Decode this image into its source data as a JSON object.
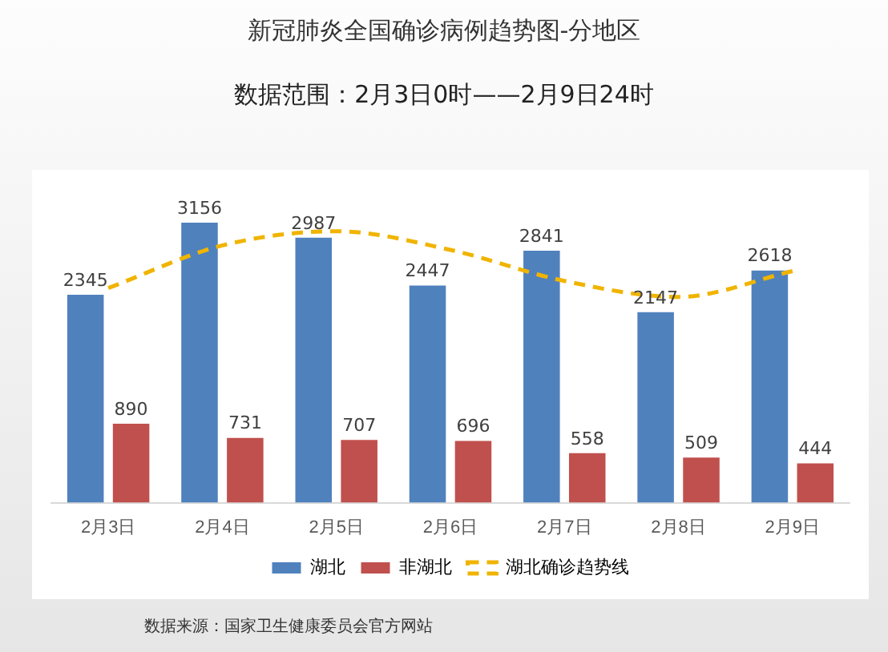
{
  "chart_data": {
    "type": "bar",
    "title": "新冠肺炎全国确诊病例趋势图-分地区",
    "subtitle": "数据范围：2月3日0时——2月9日24时",
    "categories": [
      "2月3日",
      "2月4日",
      "2月5日",
      "2月6日",
      "2月7日",
      "2月8日",
      "2月9日"
    ],
    "series": [
      {
        "name": "湖北",
        "color": "#4f81bd",
        "values": [
          2345,
          3156,
          2987,
          2447,
          2841,
          2147,
          2618
        ],
        "value_labels": [
          "2345",
          "3156",
          "2987",
          "2447",
          "2841",
          "2147",
          "2618"
        ]
      },
      {
        "name": "非湖北",
        "color": "#c0504d",
        "values": [
          890,
          731,
          707,
          696,
          558,
          509,
          444
        ],
        "value_labels": [
          "890",
          "731",
          "707",
          "696",
          "558",
          "509",
          "444"
        ]
      },
      {
        "name": "湖北确诊趋势线",
        "type": "line",
        "color": "#f0b400",
        "line_style": "dashed",
        "marker": "none",
        "values": [
          2420,
          2900,
          3060,
          2850,
          2500,
          2320,
          2610
        ]
      }
    ],
    "tick_labels": "x",
    "grid": false,
    "legend": "bottom",
    "annotations": [
      "数据来源：国家卫生健康委员会官方网站"
    ]
  }
}
